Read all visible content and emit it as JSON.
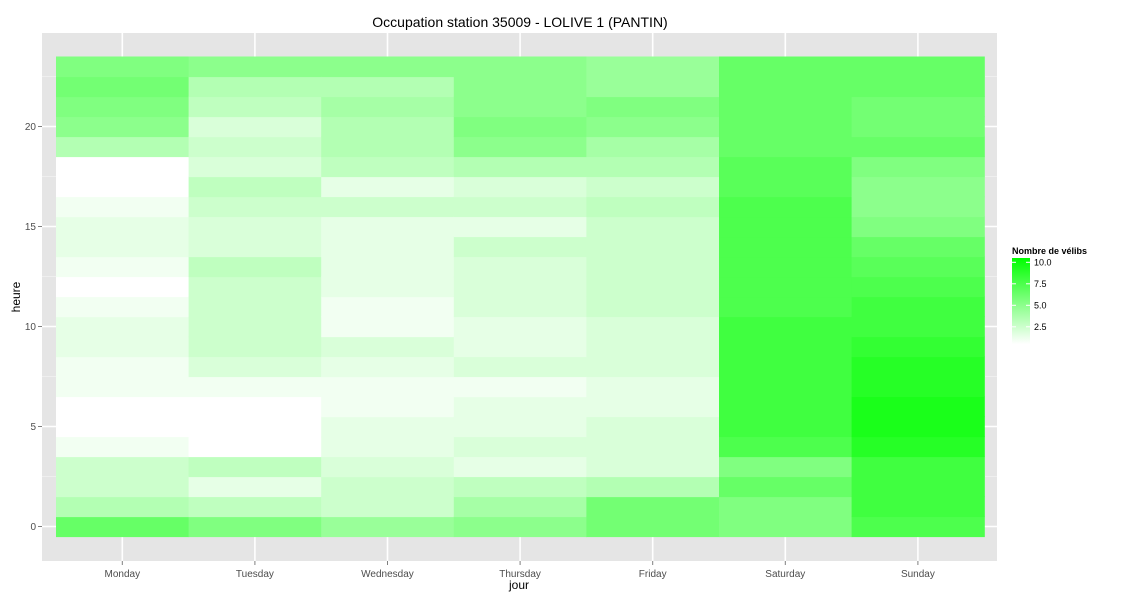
{
  "chart_data": {
    "type": "heatmap",
    "title": "Occupation station 35009 - LOLIVE 1 (PANTIN)",
    "xlabel": "jour",
    "ylabel": "heure",
    "categories": [
      "Monday",
      "Tuesday",
      "Wednesday",
      "Thursday",
      "Friday",
      "Saturday",
      "Sunday"
    ],
    "y_ticks": [
      "0",
      "5",
      "10",
      "15",
      "20"
    ],
    "hours": [
      0,
      1,
      2,
      3,
      4,
      5,
      6,
      7,
      8,
      9,
      10,
      11,
      12,
      13,
      14,
      15,
      16,
      17,
      18,
      19,
      20,
      21,
      22,
      23
    ],
    "ylim": [
      -0.5,
      23.5
    ],
    "grid": true,
    "legend": {
      "title": "Nombre de vélibs",
      "position": "right",
      "labels": [
        "10.0",
        "7.5",
        "5.0",
        "2.5"
      ],
      "ticks": [
        10,
        7.5,
        5,
        2.5
      ],
      "range": [
        0.5,
        10.5
      ],
      "low_color": "#ffffff",
      "high_color": "#00ff00"
    },
    "values": [
      [
        6.5,
        3.5,
        2.5,
        2.5,
        1.0,
        0.5,
        0.5,
        1.0,
        1.0,
        1.5,
        1.5,
        1.0,
        0.5,
        1.0,
        1.5,
        1.5,
        1.0,
        0.5,
        0.5,
        3.5,
        5.0,
        5.5,
        6.0,
        5.5
      ],
      [
        5.5,
        3.0,
        1.5,
        3.0,
        0.5,
        0.0,
        0.0,
        1.0,
        2.0,
        2.5,
        2.5,
        2.5,
        2.5,
        3.0,
        2.0,
        2.0,
        2.5,
        3.0,
        2.0,
        2.5,
        2.0,
        3.0,
        3.5,
        5.0
      ],
      [
        4.5,
        2.5,
        2.5,
        2.0,
        1.5,
        1.5,
        1.0,
        1.0,
        1.5,
        2.0,
        1.0,
        1.0,
        1.5,
        1.5,
        1.5,
        1.5,
        2.5,
        1.5,
        3.0,
        3.5,
        3.5,
        4.0,
        3.5,
        5.0
      ],
      [
        5.0,
        4.0,
        3.0,
        1.5,
        2.0,
        1.5,
        1.5,
        1.0,
        2.0,
        1.5,
        1.5,
        2.0,
        2.0,
        2.0,
        2.5,
        1.5,
        2.5,
        2.0,
        3.5,
        5.0,
        5.5,
        5.0,
        5.0,
        5.0
      ],
      [
        6.0,
        6.0,
        3.5,
        2.0,
        2.0,
        2.0,
        1.5,
        1.5,
        2.0,
        2.0,
        2.0,
        2.5,
        2.5,
        2.5,
        2.5,
        2.5,
        3.0,
        2.5,
        3.5,
        4.0,
        5.0,
        5.5,
        4.5,
        4.5
      ],
      [
        5.5,
        5.5,
        6.5,
        5.5,
        7.5,
        8.0,
        8.0,
        8.0,
        8.0,
        8.0,
        8.0,
        7.5,
        7.5,
        7.5,
        7.5,
        7.5,
        7.5,
        7.0,
        7.0,
        6.5,
        6.5,
        6.5,
        6.5,
        6.5
      ],
      [
        7.5,
        8.0,
        8.0,
        8.0,
        9.0,
        9.5,
        9.5,
        9.0,
        9.0,
        8.5,
        8.0,
        8.0,
        7.5,
        7.0,
        6.5,
        5.5,
        5.0,
        5.0,
        5.5,
        6.5,
        6.0,
        6.0,
        6.5,
        6.5
      ]
    ]
  }
}
